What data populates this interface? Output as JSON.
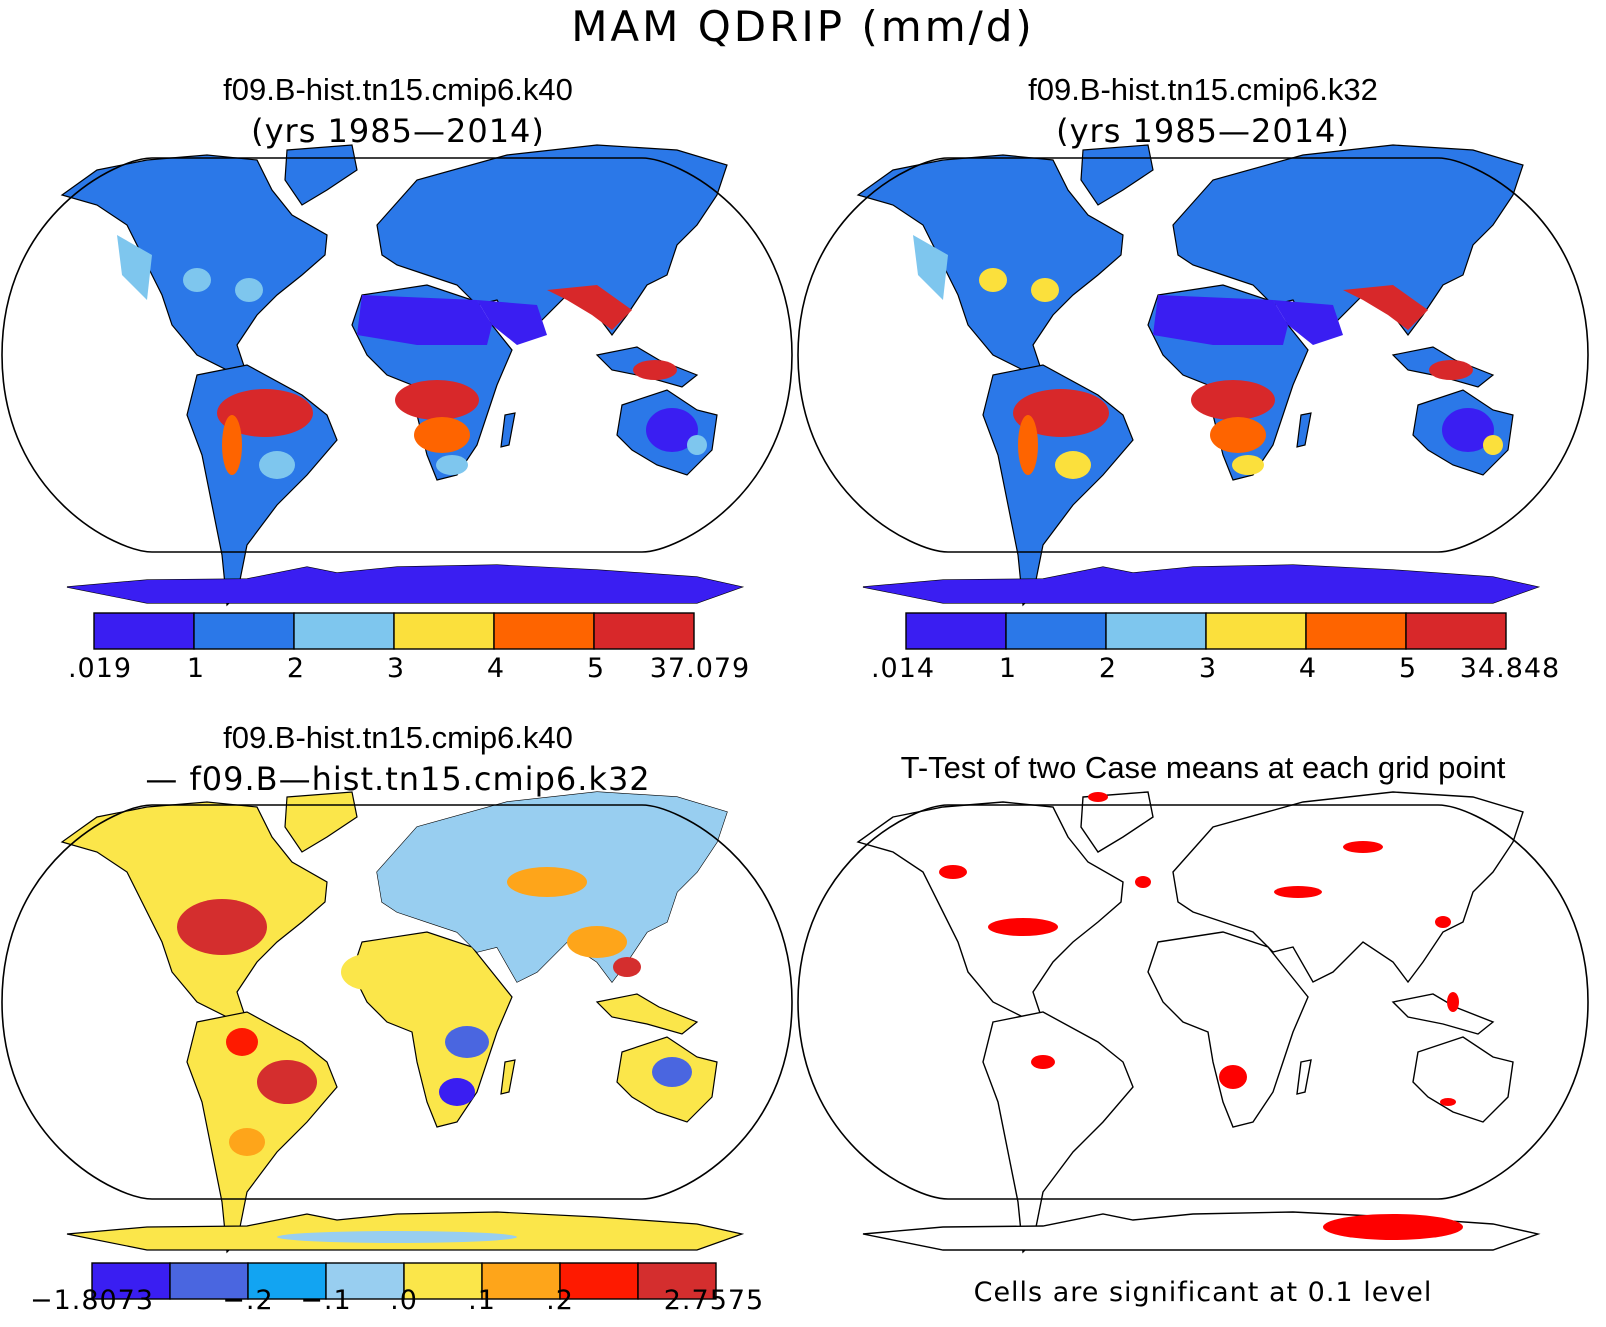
{
  "title": "MAM QDRIP (mm/d)",
  "panels": [
    {
      "title": "f09.B-hist.tn15.cmip6.k40",
      "subtitle": "(yrs 1985—2014)",
      "colorbar": {
        "colors": [
          "#3a1ef2",
          "#2b78e8",
          "#7ec6ee",
          "#fbe03c",
          "#fe6400",
          "#d8282a"
        ],
        "labels": [
          ".019",
          "1",
          "2",
          "3",
          "4",
          "5",
          "37.079"
        ]
      }
    },
    {
      "title": "f09.B-hist.tn15.cmip6.k32",
      "subtitle": "(yrs 1985—2014)",
      "colorbar": {
        "colors": [
          "#3a1ef2",
          "#2b78e8",
          "#7ec6ee",
          "#fbe03c",
          "#fe6400",
          "#d8282a"
        ],
        "labels": [
          ".014",
          "1",
          "2",
          "3",
          "4",
          "5",
          "34.848"
        ]
      }
    },
    {
      "title": "f09.B-hist.tn15.cmip6.k40",
      "subtitle": "— f09.B—hist.tn15.cmip6.k32",
      "colorbar": {
        "colors": [
          "#3a1ef2",
          "#4a66e0",
          "#12a4f2",
          "#98cef0",
          "#fbe64a",
          "#fea51a",
          "#fe1a00",
          "#d42e2e"
        ],
        "labels": [
          "−1.8073",
          "−.2",
          "−.1",
          ".0",
          ".1",
          ".2",
          "2.7575"
        ]
      }
    },
    {
      "title": "T-Test of two Case means at each grid point",
      "footnote": "Cells are significant at 0.1 level",
      "highlight_color": "#fe0000"
    }
  ]
}
